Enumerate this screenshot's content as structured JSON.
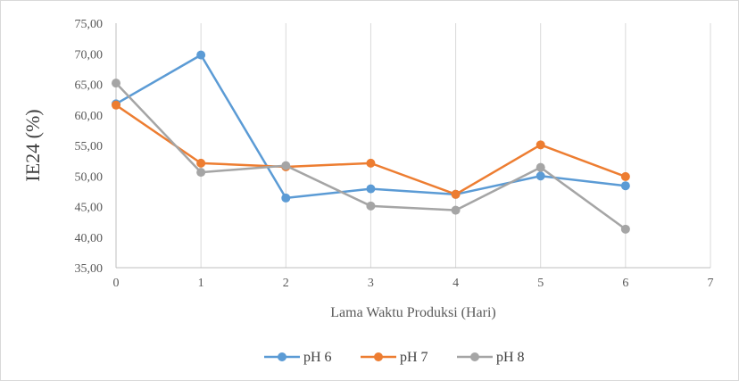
{
  "chart_data": {
    "type": "scatter",
    "mode": "lines+markers",
    "title": "",
    "xlabel": "Lama Waktu Produksi (Hari)",
    "ylabel": "IE24 (%)",
    "xlim": [
      0,
      7
    ],
    "ylim": [
      35,
      75
    ],
    "x_ticks": [
      "0",
      "1",
      "2",
      "3",
      "4",
      "5",
      "6",
      "7"
    ],
    "y_ticks": [
      "35,00",
      "40,00",
      "45,00",
      "50,00",
      "55,00",
      "60,00",
      "65,00",
      "70,00",
      "75,00"
    ],
    "grid": "vertical",
    "legend_position": "bottom",
    "series": [
      {
        "name": "pH 6",
        "color": "#5b9bd5",
        "x": [
          0,
          1,
          2,
          3,
          4,
          5,
          6
        ],
        "y": [
          61.8,
          69.8,
          46.4,
          47.9,
          47.0,
          50.0,
          48.4
        ]
      },
      {
        "name": "pH 7",
        "color": "#ed7d31",
        "x": [
          0,
          1,
          2,
          3,
          4,
          5,
          6
        ],
        "y": [
          61.6,
          52.1,
          51.5,
          52.1,
          47.0,
          55.1,
          49.9
        ]
      },
      {
        "name": "pH 8",
        "color": "#a5a5a5",
        "x": [
          0,
          1,
          2,
          3,
          4,
          5,
          6
        ],
        "y": [
          65.2,
          50.6,
          51.7,
          45.1,
          44.4,
          51.4,
          41.3
        ]
      }
    ]
  }
}
